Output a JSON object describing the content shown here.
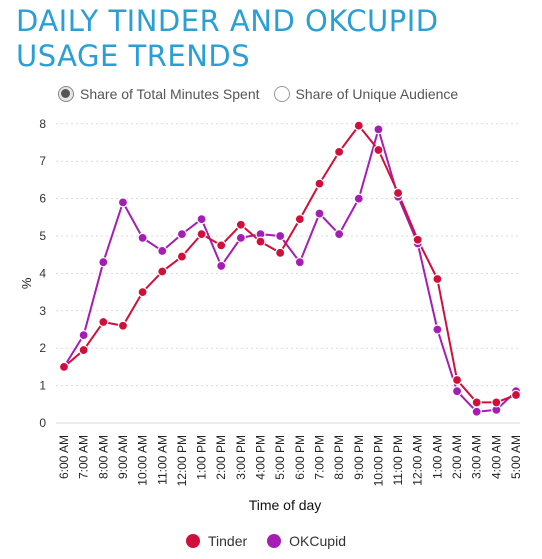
{
  "title": "DAILY TINDER AND OKCUPID USAGE TRENDS",
  "radio_options": [
    {
      "label": "Share of Total Minutes Spent",
      "selected": true
    },
    {
      "label": "Share of Unique Audience",
      "selected": false
    }
  ],
  "chart_data": {
    "type": "line",
    "xlabel": "Time of day",
    "ylabel": "%",
    "ylim": [
      0,
      8
    ],
    "yticks": [
      "0",
      "1",
      "2",
      "3",
      "4",
      "5",
      "6",
      "7",
      "8"
    ],
    "grid": true,
    "legend_position": "bottom",
    "categories": [
      "6:00 AM",
      "7:00 AM",
      "8:00 AM",
      "9:00 AM",
      "10:00 AM",
      "11:00 AM",
      "12:00 PM",
      "1:00 PM",
      "2:00 PM",
      "3:00 PM",
      "4:00 PM",
      "5:00 PM",
      "6:00 PM",
      "7:00 PM",
      "8:00 PM",
      "9:00 PM",
      "10:00 PM",
      "11:00 PM",
      "12:00 AM",
      "1:00 AM",
      "2:00 AM",
      "3:00 AM",
      "4:00 AM",
      "5:00 AM"
    ],
    "series": [
      {
        "name": "Tinder",
        "color": "#d0103a",
        "values": [
          1.5,
          1.95,
          2.7,
          2.6,
          3.5,
          4.05,
          4.45,
          5.05,
          4.75,
          5.3,
          4.85,
          4.55,
          5.45,
          6.4,
          7.25,
          7.95,
          7.3,
          6.15,
          4.9,
          3.85,
          1.15,
          0.55,
          0.55,
          0.75
        ]
      },
      {
        "name": "OKCupid",
        "color": "#a51db5",
        "values": [
          1.5,
          2.35,
          4.3,
          5.9,
          4.95,
          4.6,
          5.05,
          5.45,
          4.2,
          4.95,
          5.05,
          5.0,
          4.3,
          5.6,
          5.05,
          6.0,
          7.85,
          6.05,
          4.8,
          2.5,
          0.85,
          0.3,
          0.35,
          0.85
        ]
      }
    ]
  }
}
